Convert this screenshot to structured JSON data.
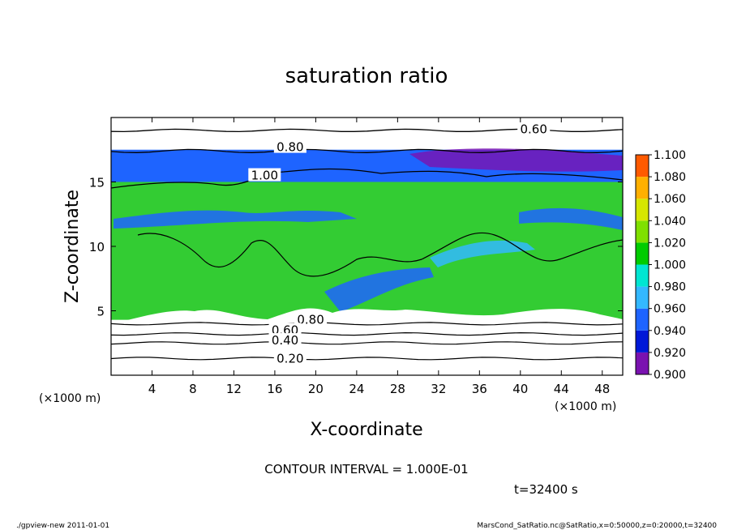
{
  "chart_data": {
    "type": "heatmap",
    "title": "saturation ratio",
    "xlabel": "X-coordinate",
    "ylabel": "Z-coordinate",
    "x_unit_left": "(×1000 m)",
    "x_unit_right": "(×1000 m)",
    "xlim": [
      0,
      50
    ],
    "ylim": [
      0,
      20
    ],
    "xticks": [
      "4",
      "8",
      "12",
      "16",
      "20",
      "24",
      "28",
      "32",
      "36",
      "40",
      "44",
      "48"
    ],
    "xtick_values": [
      4,
      8,
      12,
      16,
      20,
      24,
      28,
      32,
      36,
      40,
      44,
      48
    ],
    "yticks": [
      "5",
      "10",
      "15"
    ],
    "ytick_values": [
      5,
      10,
      15
    ],
    "colorbar": {
      "labels": [
        "0.900",
        "0.920",
        "0.940",
        "0.960",
        "0.980",
        "1.000",
        "1.020",
        "1.040",
        "1.060",
        "1.080",
        "1.100"
      ],
      "colors": [
        "#7a12b0",
        "#0018d8",
        "#1e64ff",
        "#33b8ff",
        "#00e6d2",
        "#00cc00",
        "#7fe000",
        "#d6e600",
        "#ffb000",
        "#ff5a00",
        "#ff8a8a"
      ]
    },
    "regions": [
      {
        "name": "upper white layer",
        "z_range": [
          17.5,
          20
        ],
        "color": "#ffffff"
      },
      {
        "name": "upper blue layer",
        "z_range": [
          15,
          17.5
        ],
        "color": "#1e64ff"
      },
      {
        "name": "green bulk",
        "z_range": [
          4.3,
          15
        ],
        "color": "#33cc33"
      },
      {
        "name": "lower white layer",
        "z_range": [
          0,
          4.3
        ],
        "color": "#ffffff"
      }
    ],
    "contour_labels": [
      {
        "text": "0.60",
        "x": 41.3,
        "z": 19.1
      },
      {
        "text": "0.80",
        "x": 17.5,
        "z": 17.7
      },
      {
        "text": "1.00",
        "x": 15.0,
        "z": 15.5
      },
      {
        "text": "0.80",
        "x": 19.5,
        "z": 4.3
      },
      {
        "text": "0.60",
        "x": 17.0,
        "z": 3.5
      },
      {
        "text": "0.40",
        "x": 17.0,
        "z": 2.7
      },
      {
        "text": "0.20",
        "x": 17.5,
        "z": 1.3
      }
    ],
    "contour_levels": [
      {
        "z": 17.4,
        "label": "0.80"
      },
      {
        "z": 19.0,
        "label": "0.60"
      },
      {
        "z": 4.0,
        "label": "0.80"
      },
      {
        "z": 3.2,
        "label": "0.60"
      },
      {
        "z": 2.5,
        "label": "0.40"
      },
      {
        "z": 1.3,
        "label": "0.20"
      }
    ],
    "contour_interval_text": "CONTOUR INTERVAL = 1.000E-01",
    "time_text": "t=32400 s"
  },
  "footer": {
    "left": "./gpview-new  2011-01-01",
    "right": "MarsCond_SatRatio.nc@SatRatio,x=0:50000,z=0:20000,t=32400"
  }
}
